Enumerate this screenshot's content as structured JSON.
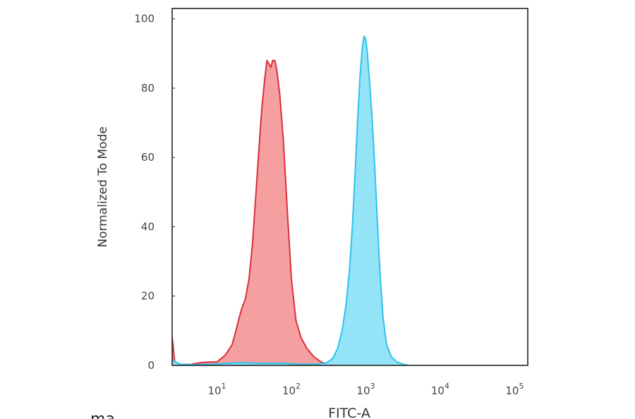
{
  "chart_data": {
    "type": "area",
    "title": "",
    "xlabel": "FITC-A",
    "ylabel": "Normalized To Mode",
    "xscale": "log",
    "xlim": [
      2.5,
      150000
    ],
    "ylim": [
      0,
      103
    ],
    "grid": false,
    "legend": "none",
    "x_ticks": [
      {
        "base": "10",
        "exp": "1",
        "value": 10
      },
      {
        "base": "10",
        "exp": "2",
        "value": 100
      },
      {
        "base": "10",
        "exp": "3",
        "value": 1000
      },
      {
        "base": "10",
        "exp": "4",
        "value": 10000
      },
      {
        "base": "10",
        "exp": "5",
        "value": 100000
      }
    ],
    "y_ticks": [
      "0",
      "20",
      "40",
      "60",
      "80",
      "100"
    ],
    "series": [
      {
        "color_fill": "#f59a9c",
        "color_line": "#d9303a",
        "points": [
          [
            2.5,
            8
          ],
          [
            2.6,
            5
          ],
          [
            2.7,
            1
          ],
          [
            2.9,
            0.2
          ],
          [
            4.5,
            0.3
          ],
          [
            6,
            0.8
          ],
          [
            8,
            1
          ],
          [
            10,
            1
          ],
          [
            13,
            3
          ],
          [
            16,
            6
          ],
          [
            18,
            10
          ],
          [
            20,
            14
          ],
          [
            22,
            17
          ],
          [
            24,
            19
          ],
          [
            27,
            25
          ],
          [
            30,
            35
          ],
          [
            33,
            48
          ],
          [
            36,
            60
          ],
          [
            40,
            74
          ],
          [
            44,
            83
          ],
          [
            47,
            88
          ],
          [
            50,
            87
          ],
          [
            53,
            86
          ],
          [
            56,
            88
          ],
          [
            60,
            88
          ],
          [
            64,
            85
          ],
          [
            70,
            78
          ],
          [
            78,
            65
          ],
          [
            88,
            45
          ],
          [
            100,
            25
          ],
          [
            115,
            13
          ],
          [
            135,
            8
          ],
          [
            160,
            5
          ],
          [
            200,
            2.5
          ],
          [
            250,
            1
          ],
          [
            300,
            0.3
          ],
          [
            350,
            0
          ]
        ]
      },
      {
        "color_fill": "#8ee3f7",
        "color_line": "#2ec3ea",
        "points": [
          [
            2.5,
            1.5
          ],
          [
            2.8,
            1
          ],
          [
            3.2,
            0.3
          ],
          [
            5,
            0.2
          ],
          [
            10,
            0.4
          ],
          [
            20,
            0.8
          ],
          [
            40,
            0.6
          ],
          [
            80,
            0.6
          ],
          [
            150,
            0.3
          ],
          [
            230,
            0.4
          ],
          [
            300,
            0.8
          ],
          [
            360,
            2
          ],
          [
            420,
            5
          ],
          [
            480,
            10
          ],
          [
            540,
            17
          ],
          [
            600,
            27
          ],
          [
            660,
            40
          ],
          [
            720,
            56
          ],
          [
            780,
            72
          ],
          [
            840,
            84
          ],
          [
            900,
            92
          ],
          [
            950,
            95
          ],
          [
            1000,
            94
          ],
          [
            1050,
            90
          ],
          [
            1120,
            82
          ],
          [
            1200,
            73
          ],
          [
            1300,
            60
          ],
          [
            1420,
            43
          ],
          [
            1550,
            27
          ],
          [
            1700,
            14
          ],
          [
            1900,
            6
          ],
          [
            2200,
            2.5
          ],
          [
            2600,
            1
          ],
          [
            3200,
            0.3
          ],
          [
            3800,
            0
          ]
        ]
      }
    ]
  },
  "footer_fragment": "ma"
}
